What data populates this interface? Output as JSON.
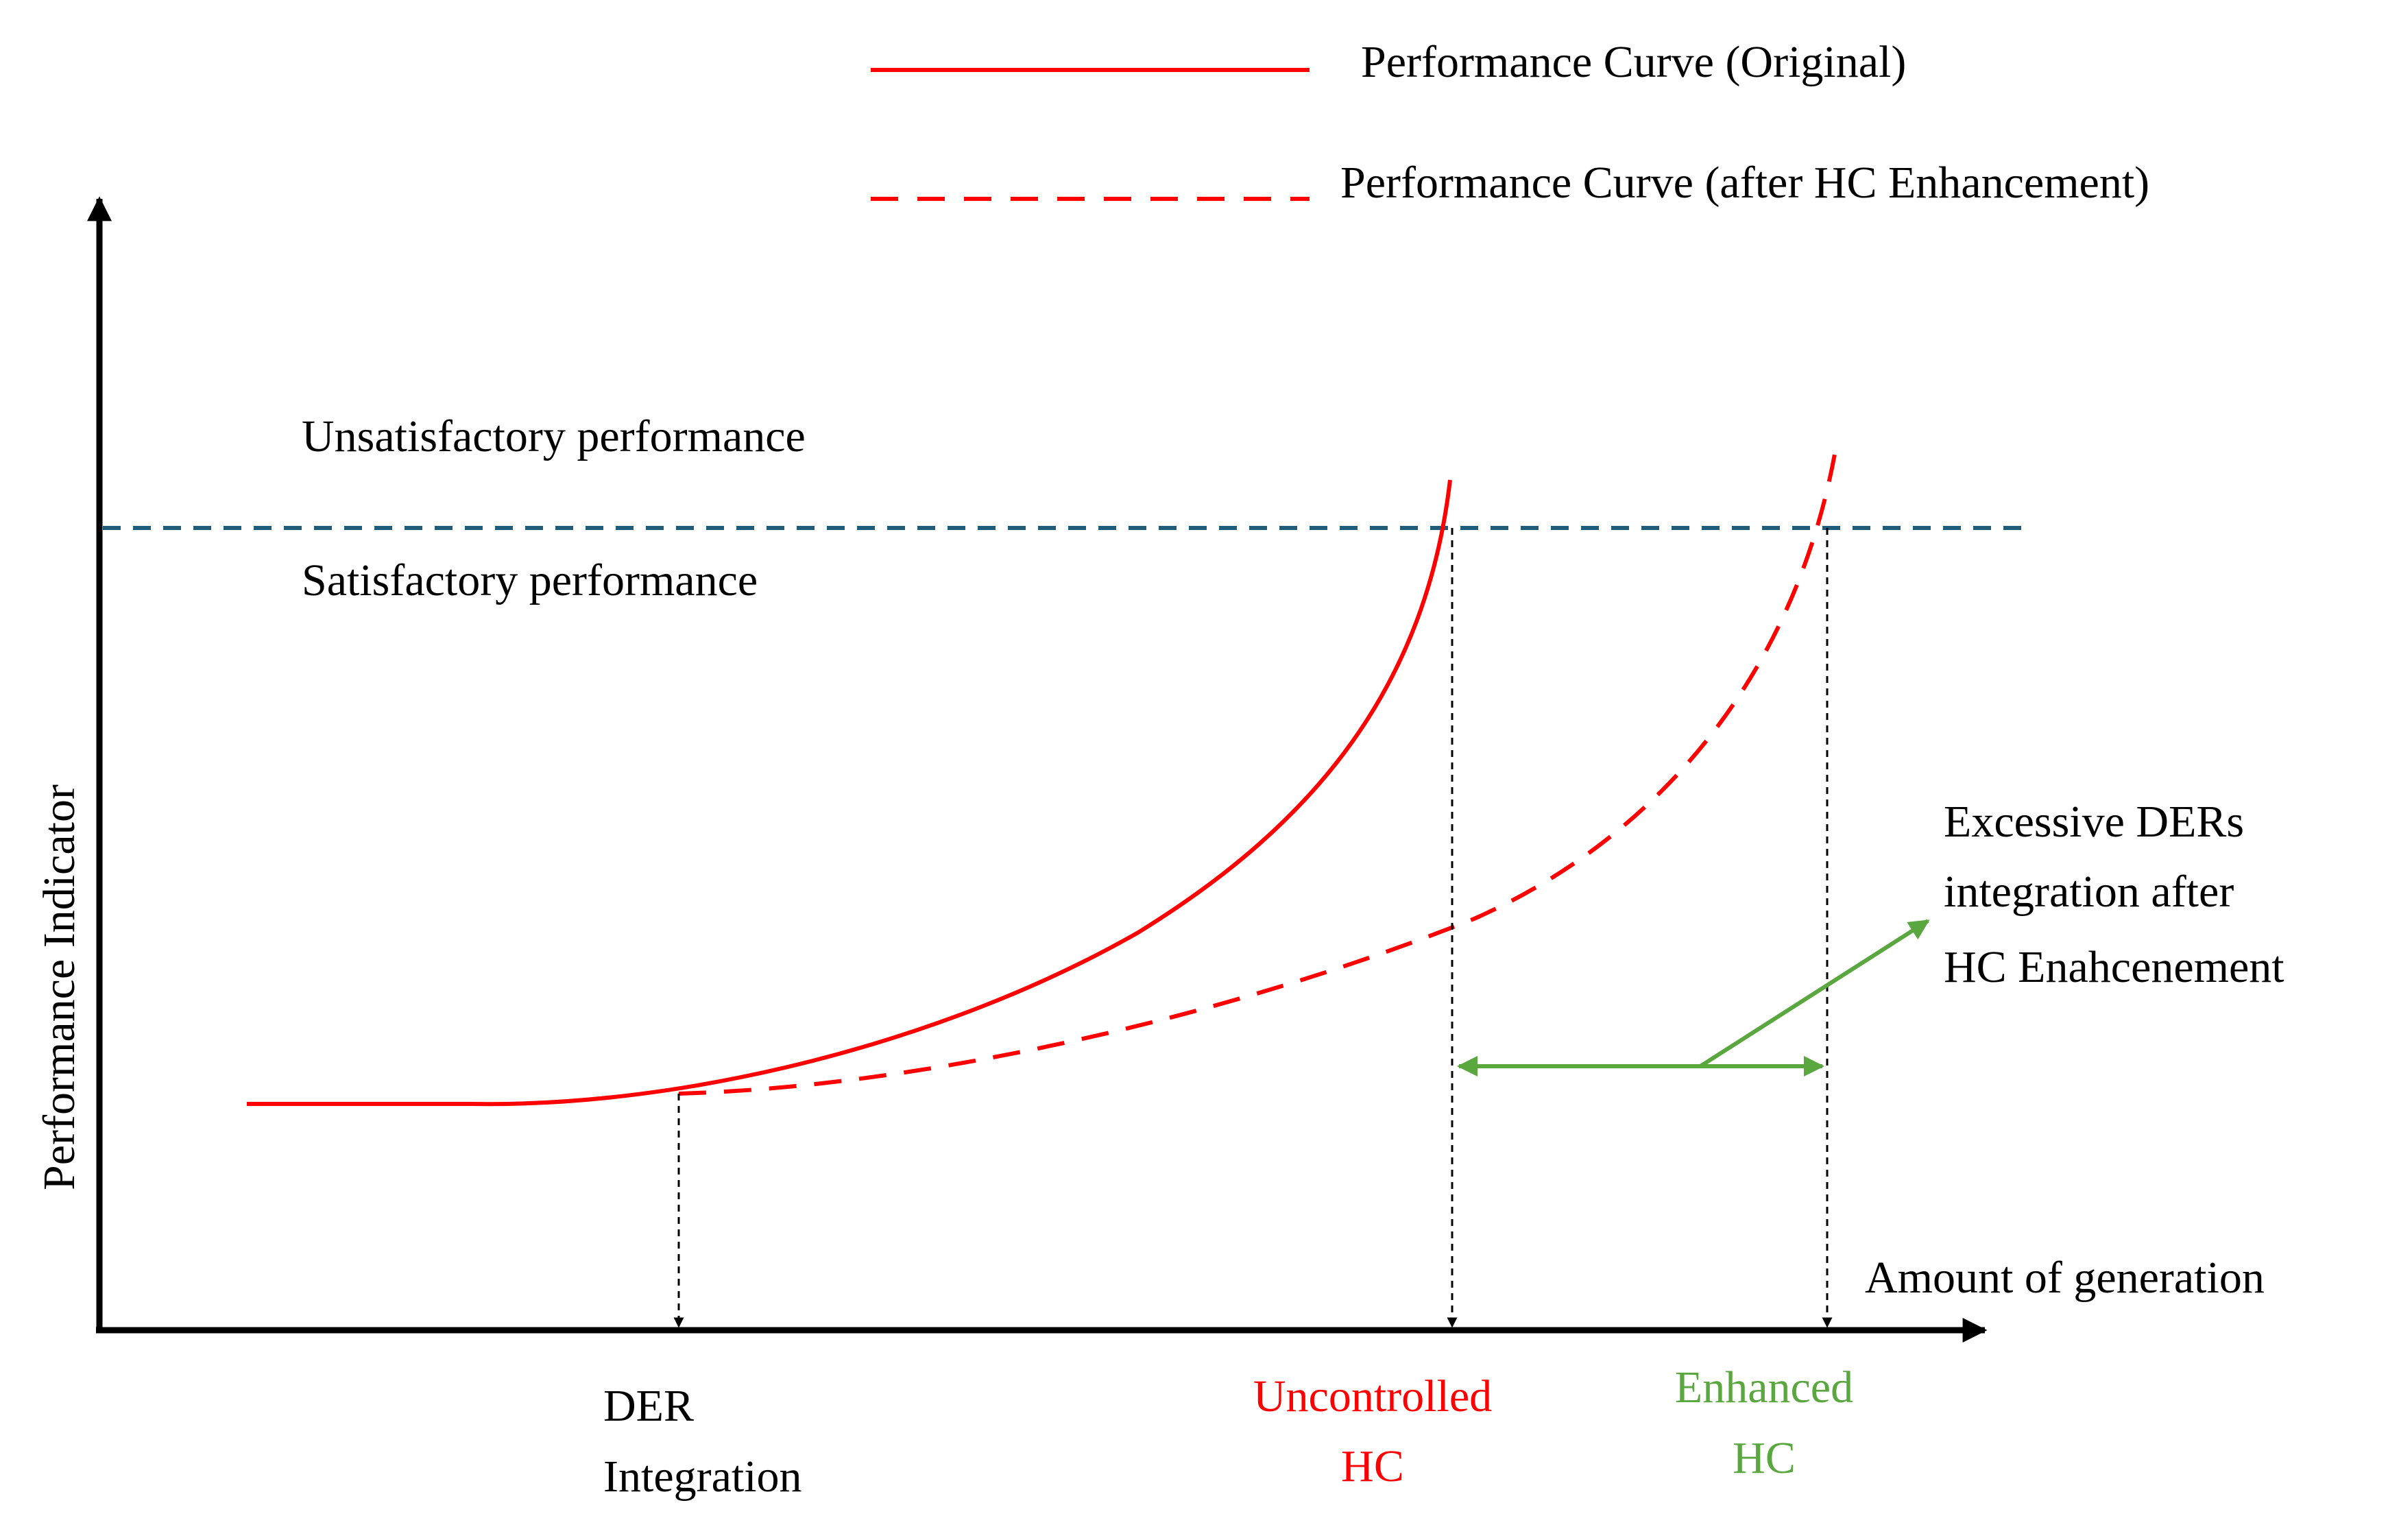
{
  "legend": {
    "original_label": "Performance Curve (Original)",
    "enhanced_label": "Performance Curve (after HC Enhancement)"
  },
  "axes": {
    "y_label": "Performance Indicator",
    "x_label": "Amount of generation"
  },
  "threshold": {
    "above_label": "Unsatisfactory performance",
    "below_label": "Satisfactory performance"
  },
  "annotations": {
    "excessive": [
      "Excessive DERs",
      "integration after",
      "HC Enahcenement"
    ]
  },
  "markers": {
    "der": [
      "DER",
      "Integration"
    ],
    "uncontrolled": [
      "Uncontrolled",
      "HC"
    ],
    "enhanced": [
      "Enhanced",
      "HC"
    ]
  },
  "colors": {
    "original_curve": "#ff0000",
    "enhanced_curve": "#ff0000",
    "threshold_line": "#1f5c7a",
    "enhancement_arrow": "#5aa63f",
    "axes": "#000000"
  }
}
